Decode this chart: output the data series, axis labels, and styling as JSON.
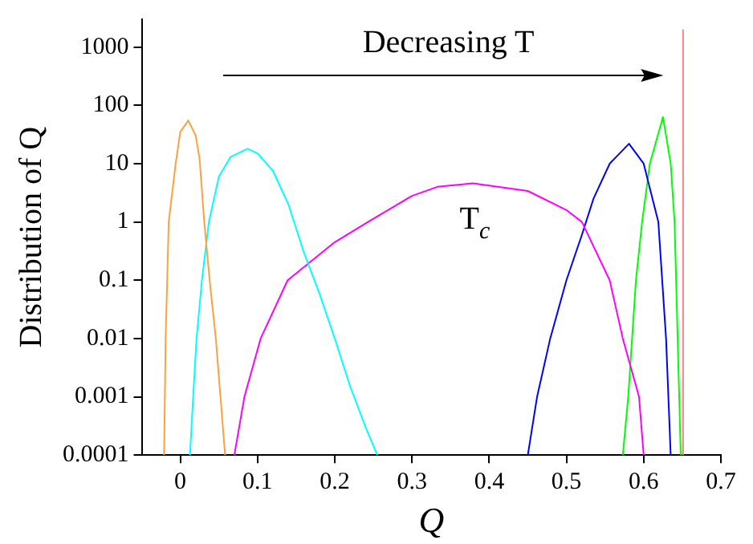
{
  "chart_data": {
    "type": "line",
    "xlabel": "Q",
    "ylabel": "Distribution of Q",
    "log": "y",
    "grid": false,
    "legend": false,
    "marker": "none",
    "line_style": "solid",
    "xlim": [
      -0.05,
      0.7
    ],
    "xticks": [
      0,
      0.1,
      0.2,
      0.3,
      0.4,
      0.5,
      0.6,
      0.7
    ],
    "ylim": [
      0.0001,
      3000
    ],
    "yticks": [
      0.0001,
      0.001,
      0.01,
      0.1,
      1,
      10,
      100,
      1000
    ],
    "annotations": [
      "Decreasing T",
      "T$_{c}$"
    ],
    "series": [
      {
        "color": "#ffa040",
        "x": [
          -0.021,
          -0.019,
          -0.015,
          -0.006,
          0,
          0.0104,
          0.02,
          0.025,
          0.031,
          0.038,
          0.046,
          0.052,
          0.058
        ],
        "values": [
          0.0001,
          0.01,
          1,
          10,
          35,
          55,
          30,
          12,
          1,
          0.1,
          0.01,
          0.001,
          0.0001
        ]
      },
      {
        "color": "#00ffff",
        "x": [
          0.0125,
          0.016,
          0.021,
          0.028,
          0.037,
          0.05,
          0.065,
          0.087,
          0.1,
          0.12,
          0.14,
          0.16,
          0.18,
          0.2,
          0.22,
          0.24,
          0.255
        ],
        "values": [
          0.0001,
          0.0007,
          0.01,
          0.1,
          1,
          6,
          13,
          18,
          15,
          7.5,
          2,
          0.3,
          0.06,
          0.01,
          0.0015,
          0.0003,
          0.0001
        ]
      },
      {
        "color": "#ff00ff",
        "x": [
          0.07,
          0.083,
          0.104,
          0.139,
          0.2,
          0.243,
          0.3,
          0.333,
          0.379,
          0.45,
          0.5,
          0.52,
          0.556,
          0.573,
          0.594,
          0.6
        ],
        "values": [
          0.0001,
          0.001,
          0.01,
          0.1,
          0.45,
          1,
          2.8,
          4,
          4.6,
          3.4,
          1.6,
          1,
          0.1,
          0.01,
          0.001,
          0.0001
        ]
      },
      {
        "color": "#0000ff",
        "x": [
          0.45,
          0.462,
          0.479,
          0.5,
          0.52,
          0.535,
          0.556,
          0.581,
          0.6,
          0.619,
          0.629,
          0.635
        ],
        "values": [
          0.0001,
          0.001,
          0.01,
          0.1,
          0.6,
          2.5,
          10,
          22,
          10,
          1,
          0.01,
          0.0001
        ]
      },
      {
        "color": "#00ff00",
        "x": [
          0.573,
          0.58,
          0.585,
          0.59,
          0.598,
          0.608,
          0.625,
          0.635,
          0.64,
          0.648
        ],
        "values": [
          0.0001,
          0.001,
          0.01,
          0.1,
          1,
          10,
          63,
          10,
          1,
          0.0001
        ]
      },
      {
        "color": "#ff8080",
        "x": [
          0.651,
          0.651
        ],
        "values": [
          0.0001,
          2000
        ]
      }
    ]
  }
}
